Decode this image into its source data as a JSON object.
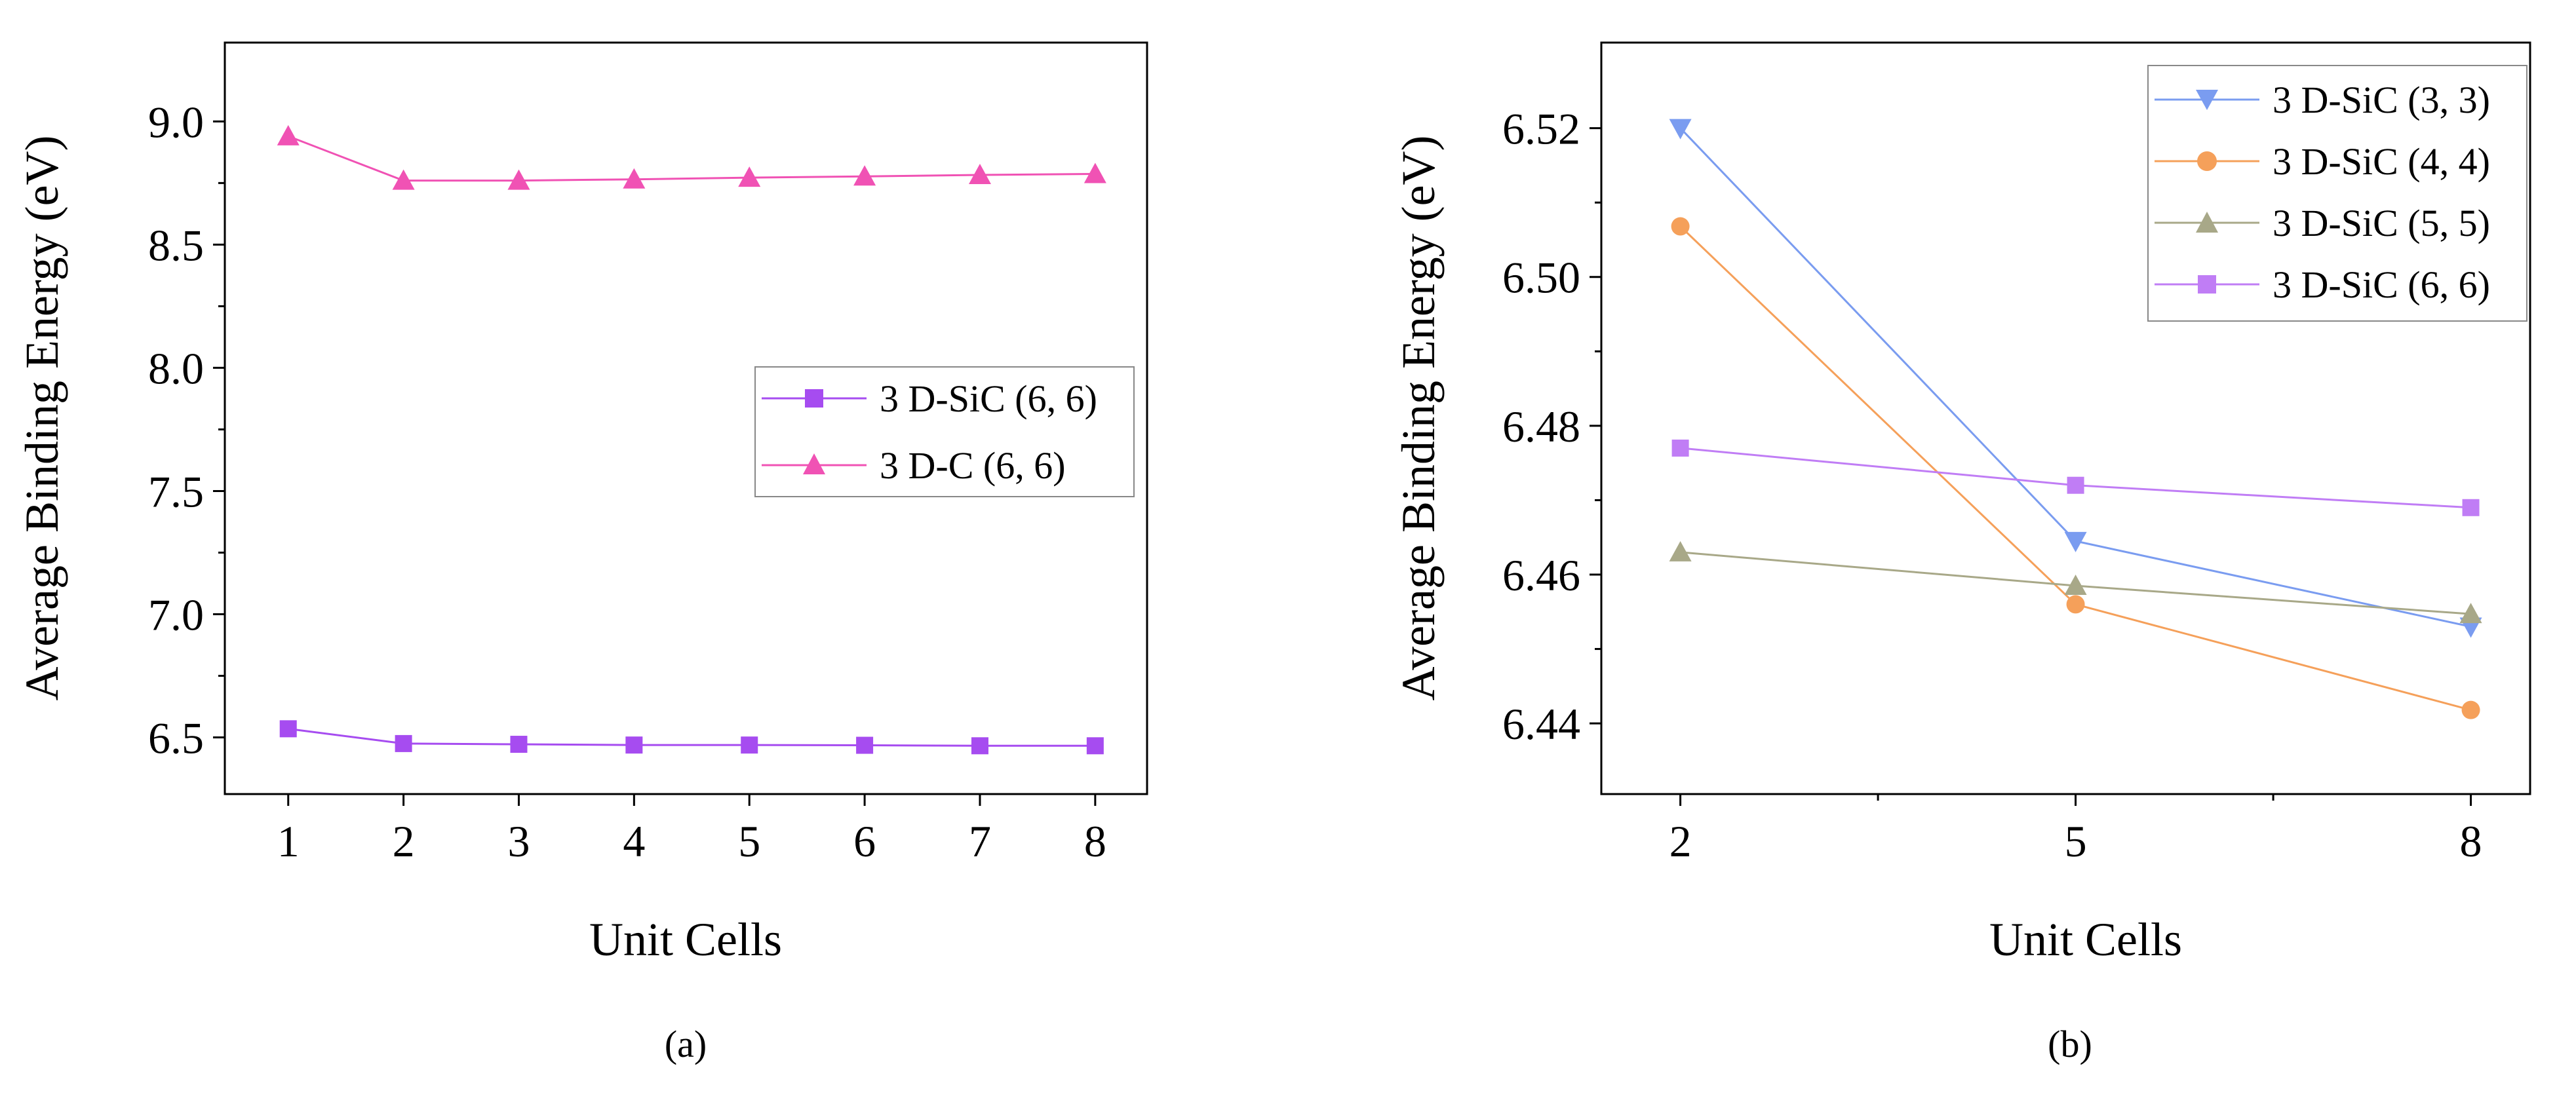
{
  "chart_data": [
    {
      "panel": "a",
      "type": "line",
      "caption": "(a)",
      "xlabel": "Unit Cells",
      "ylabel": "Average Binding Energy (eV)",
      "x": [
        1,
        2,
        3,
        4,
        5,
        6,
        7,
        8
      ],
      "xticks": [
        "1",
        "2",
        "3",
        "4",
        "5",
        "6",
        "7",
        "8"
      ],
      "xlim": [
        0.45,
        8.45
      ],
      "ylim": [
        6.27,
        9.32
      ],
      "yticks": [
        "6.5",
        "7.0",
        "7.5",
        "8.0",
        "8.5",
        "9.0"
      ],
      "ytick_values": [
        6.5,
        7.0,
        7.5,
        8.0,
        8.5,
        9.0
      ],
      "legend_position": "center-right",
      "series": [
        {
          "name": "3 D-SiC (6, 6)",
          "marker": "square",
          "color": "#a64cf0",
          "values": [
            6.535,
            6.475,
            6.472,
            6.469,
            6.469,
            6.468,
            6.466,
            6.466
          ]
        },
        {
          "name": "3 D-C (6, 6)",
          "marker": "triangle-up",
          "color": "#f052b4",
          "values": [
            8.94,
            8.76,
            8.76,
            8.765,
            8.772,
            8.777,
            8.783,
            8.787
          ]
        }
      ]
    },
    {
      "panel": "b",
      "type": "line",
      "caption": "(b)",
      "xlabel": "Unit Cells",
      "ylabel": "Average Binding Energy (eV)",
      "x": [
        2,
        5,
        8
      ],
      "xticks": [
        "2",
        "5",
        "8"
      ],
      "xlim": [
        1.4,
        8.45
      ],
      "ylim": [
        6.4305,
        6.5315
      ],
      "yticks": [
        "6.44",
        "6.46",
        "6.48",
        "6.50",
        "6.52"
      ],
      "ytick_values": [
        6.44,
        6.46,
        6.48,
        6.5,
        6.52
      ],
      "legend_position": "top-right",
      "series": [
        {
          "name": "3 D-SiC (3, 3)",
          "marker": "triangle-down",
          "color": "#7a9cf0",
          "values": [
            6.52,
            6.4645,
            6.453
          ]
        },
        {
          "name": "3 D-SiC (4, 4)",
          "marker": "circle",
          "color": "#f5a05a",
          "values": [
            6.5068,
            6.456,
            6.4418
          ]
        },
        {
          "name": "3 D-SiC (5, 5)",
          "marker": "triangle-up",
          "color": "#a8a888",
          "values": [
            6.463,
            6.4585,
            6.4547
          ]
        },
        {
          "name": "3 D-SiC (6, 6)",
          "marker": "square",
          "color": "#c07df5",
          "values": [
            6.477,
            6.472,
            6.469
          ]
        }
      ]
    }
  ]
}
